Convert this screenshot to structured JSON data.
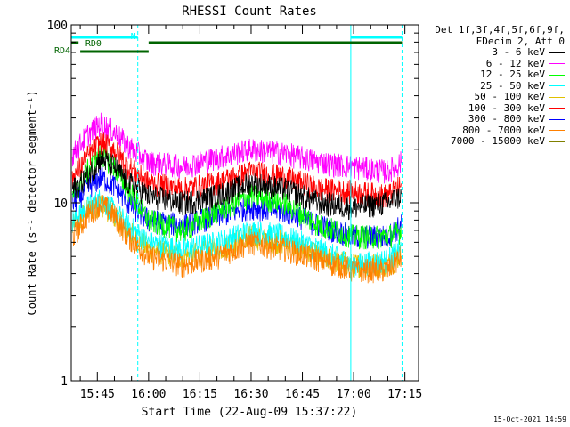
{
  "chart_data": {
    "type": "line",
    "title": "RHESSI Count Rates",
    "xlabel": "Start Time (22-Aug-09 15:37:22)",
    "ylabel": "Count Rate (s⁻¹ detector segment⁻¹)",
    "y_scale": "log",
    "ylim": [
      1,
      100
    ],
    "y_ticks": [
      {
        "value": 1,
        "label": "1"
      },
      {
        "value": 10,
        "label": "10"
      },
      {
        "value": 100,
        "label": "100"
      }
    ],
    "xlim": [
      "15:37:22",
      "17:19:00"
    ],
    "x_ticks": [
      "15:45",
      "16:00",
      "16:15",
      "16:30",
      "16:45",
      "17:00",
      "17:15"
    ],
    "legend_header": [
      "Det 1f,3f,4f,5f,6f,9f,",
      "FDecim 2, Att 0"
    ],
    "legend_position": "right",
    "series": [
      {
        "name": "3 - 6 keV",
        "color": "#000000",
        "x": [
          "15:38",
          "15:42",
          "15:46",
          "15:50",
          "15:54",
          "16:00",
          "16:10",
          "16:20",
          "16:30",
          "16:40",
          "16:50",
          "17:00",
          "17:10",
          "17:14"
        ],
        "values": [
          12,
          14,
          18,
          16,
          13,
          11,
          10,
          11,
          13,
          12,
          10,
          9.5,
          10,
          11
        ]
      },
      {
        "name": "6 - 12 keV",
        "color": "#ff00ff",
        "x": [
          "15:38",
          "15:42",
          "15:46",
          "15:50",
          "15:54",
          "16:00",
          "16:10",
          "16:20",
          "16:30",
          "16:40",
          "16:50",
          "17:00",
          "17:10",
          "17:14"
        ],
        "values": [
          19,
          24,
          28,
          25,
          21,
          17,
          16,
          18,
          20,
          19,
          17,
          16,
          15,
          17
        ]
      },
      {
        "name": "12 - 25 keV",
        "color": "#00ff00",
        "x": [
          "15:38",
          "15:42",
          "15:46",
          "15:50",
          "15:54",
          "16:00",
          "16:10",
          "16:20",
          "16:30",
          "16:40",
          "16:50",
          "17:00",
          "17:10",
          "17:14"
        ],
        "values": [
          11,
          15,
          19,
          16,
          12,
          8,
          7,
          9,
          11,
          10,
          7.5,
          6.5,
          6.5,
          7
        ]
      },
      {
        "name": "25 - 50 keV",
        "color": "#00ffff",
        "x": [
          "15:38",
          "15:42",
          "15:46",
          "15:50",
          "15:54",
          "16:00",
          "16:10",
          "16:20",
          "16:30",
          "16:40",
          "16:50",
          "17:00",
          "17:10",
          "17:14"
        ],
        "values": [
          8,
          9.5,
          10.5,
          9,
          7.5,
          6,
          5.5,
          6,
          7,
          6.5,
          5.5,
          4.5,
          4.8,
          5.5
        ]
      },
      {
        "name": "50 - 100 keV",
        "color": "#e0c000",
        "x": [
          "15:38",
          "15:42",
          "15:46",
          "15:50",
          "15:54",
          "16:00",
          "16:10",
          "16:20",
          "16:30",
          "16:40",
          "16:50",
          "17:00",
          "17:10",
          "17:14"
        ],
        "values": [
          7.5,
          9,
          10,
          8.5,
          7,
          5.5,
          5,
          5.5,
          6.5,
          6,
          5,
          4.5,
          4.5,
          5.2
        ]
      },
      {
        "name": "100 - 300 keV",
        "color": "#ff0000",
        "x": [
          "15:38",
          "15:42",
          "15:46",
          "15:50",
          "15:54",
          "16:00",
          "16:10",
          "16:20",
          "16:30",
          "16:40",
          "16:50",
          "17:00",
          "17:10",
          "17:14"
        ],
        "values": [
          14,
          18,
          22,
          20,
          16,
          13,
          12,
          13,
          15,
          14,
          12,
          11.5,
          11,
          12.5
        ]
      },
      {
        "name": "300 - 800 keV",
        "color": "#0000ff",
        "x": [
          "15:38",
          "15:42",
          "15:46",
          "15:50",
          "15:54",
          "16:00",
          "16:10",
          "16:20",
          "16:30",
          "16:40",
          "16:50",
          "17:00",
          "17:10",
          "17:14"
        ],
        "values": [
          10,
          12,
          14,
          12.5,
          10,
          8,
          7.5,
          8.5,
          9.5,
          9,
          7.5,
          6.5,
          6.5,
          7.5
        ]
      },
      {
        "name": "800 - 7000 keV",
        "color": "#ff8000",
        "x": [
          "15:38",
          "15:42",
          "15:46",
          "15:50",
          "15:54",
          "16:00",
          "16:10",
          "16:20",
          "16:30",
          "16:40",
          "16:50",
          "17:00",
          "17:10",
          "17:14"
        ],
        "values": [
          6.5,
          8.5,
          10,
          8.5,
          6.5,
          5,
          4.5,
          5,
          6,
          5.5,
          4.8,
          4.2,
          4.2,
          5
        ]
      },
      {
        "name": "7000 - 15000 keV",
        "color": "#808000",
        "x": [],
        "values": []
      }
    ],
    "annotations": {
      "vertical_lines": [
        "15:37:22",
        "15:56:50",
        "16:59:10",
        "17:14:10"
      ],
      "bars": [
        {
          "label": "N",
          "color": "#00ffff",
          "segments": [
            [
              "15:37:22",
              "15:56:50"
            ],
            [
              "16:59:10",
              "17:14:10"
            ]
          ],
          "level": 83
        },
        {
          "label": "RD0",
          "color": "#006400",
          "segments": [
            [
              "15:37:22",
              "15:39:30"
            ],
            [
              "16:00:00",
              "17:14:10"
            ]
          ],
          "level": 76
        },
        {
          "label": "RD4",
          "color": "#006400",
          "segments": [
            [
              "15:40:00",
              "16:00:00"
            ]
          ],
          "level": 69
        }
      ]
    }
  },
  "footer": {
    "timestamp": "15-Oct-2021 14:59"
  }
}
